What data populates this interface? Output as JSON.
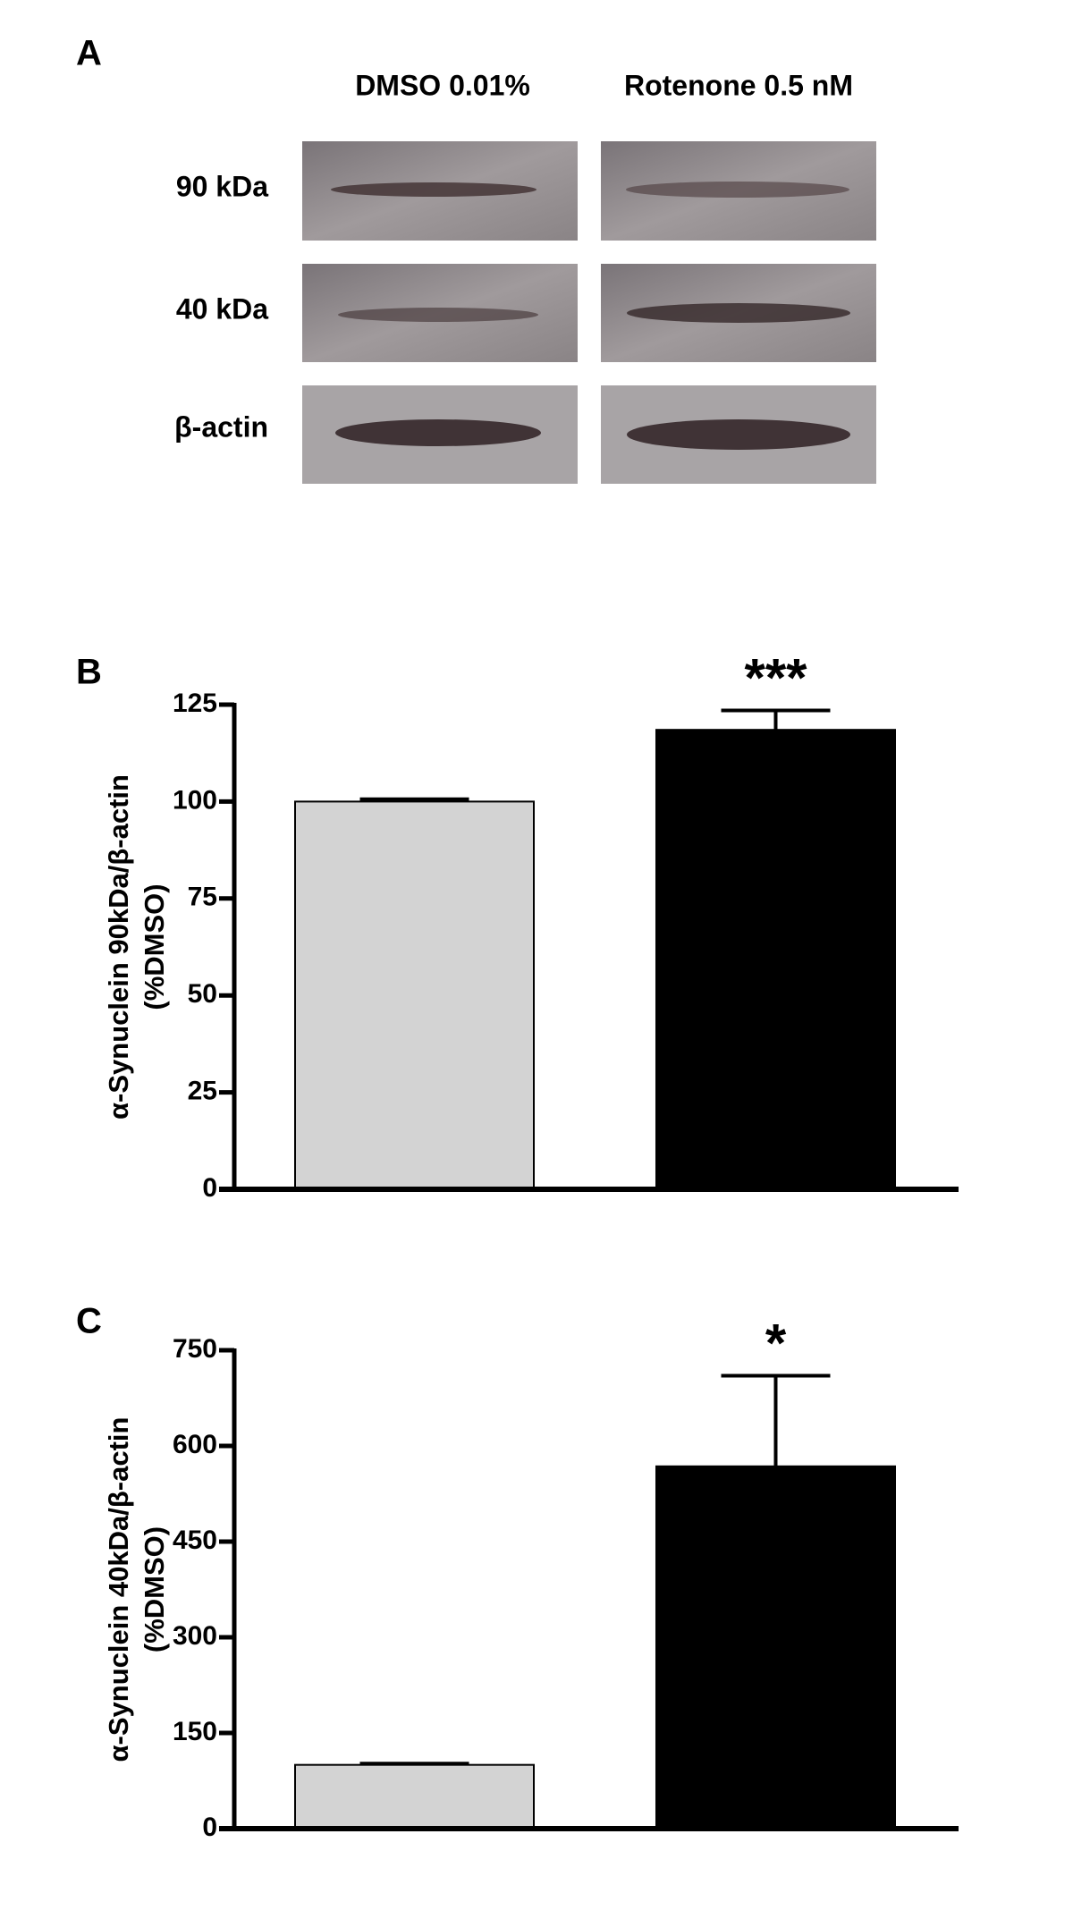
{
  "panel_a": {
    "label": "A",
    "columns": [
      "DMSO 0.01%",
      "Rotenone 0.5 nM"
    ],
    "rows": [
      "90 kDa",
      "40 kDa",
      "β-actin"
    ]
  },
  "chart_data": [
    {
      "type": "bar",
      "panel_label": "B",
      "ylabel": [
        "α-Synuclein 90kDa/β-actin",
        "(%DMSO)"
      ],
      "categories": [
        null,
        null
      ],
      "values": [
        100,
        118.5
      ],
      "errors": [
        0.6,
        5
      ],
      "annotations": [
        null,
        "***"
      ],
      "colors": [
        "#d3d3d3",
        "#000000"
      ],
      "ylim": [
        0,
        125
      ],
      "yticks": [
        0,
        25,
        50,
        75,
        100,
        125
      ]
    },
    {
      "type": "bar",
      "panel_label": "C",
      "ylabel": [
        "α-Synuclein 40kDa/β-actin",
        "(%DMSO)"
      ],
      "categories": [
        null,
        null
      ],
      "values": [
        100,
        568
      ],
      "errors": [
        2,
        142
      ],
      "annotations": [
        null,
        "*"
      ],
      "colors": [
        "#d3d3d3",
        "#000000"
      ],
      "ylim": [
        0,
        750
      ],
      "yticks": [
        0,
        150,
        300,
        450,
        600,
        750
      ]
    }
  ]
}
